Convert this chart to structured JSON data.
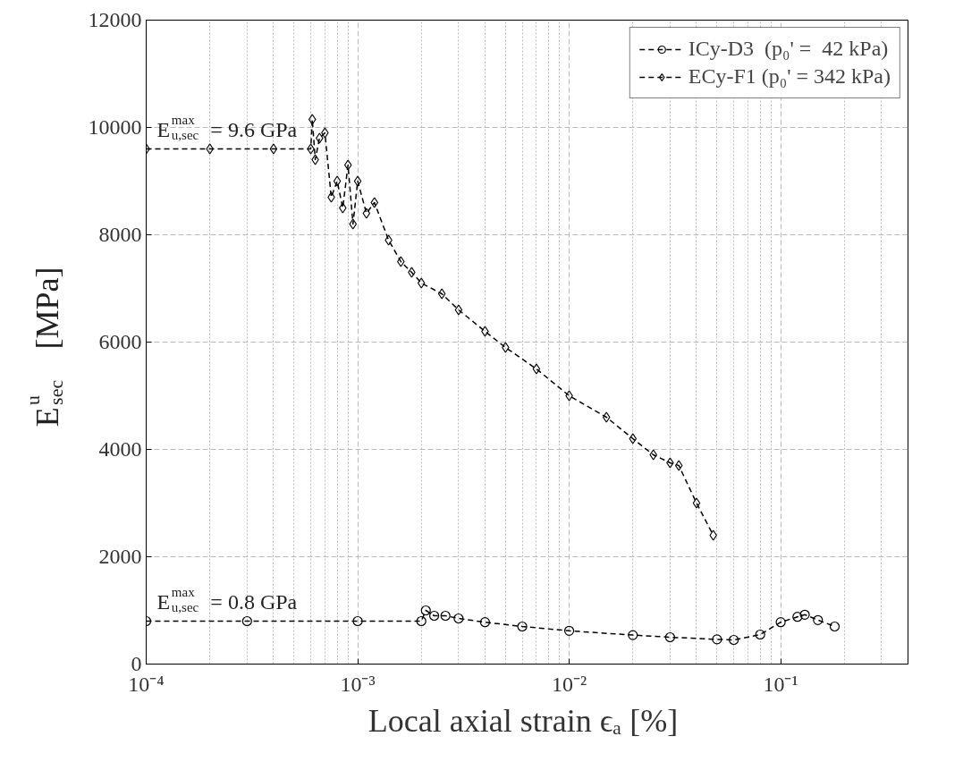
{
  "chart_data": {
    "type": "line",
    "xlabel": "Local axial strain ϵₐ  [%]",
    "ylabel": "E$^{u}$$_{sec}$  [MPa]",
    "log": "x",
    "xlim": [
      0.0001,
      0.4
    ],
    "xticks": [
      {
        "value": 0.0001,
        "label": "10⁻⁴"
      },
      {
        "value": 0.001,
        "label": "10⁻³"
      },
      {
        "value": 0.01,
        "label": "10⁻²"
      },
      {
        "value": 0.1,
        "label": "10⁻¹"
      }
    ],
    "ylim": [
      0,
      12000
    ],
    "yticks": [
      0,
      2000,
      4000,
      6000,
      8000,
      10000,
      12000
    ],
    "grid": true,
    "legend": "top right",
    "line_style": "dashed",
    "series": [
      {
        "name": "ICy-D3  (p₀' =  42 kPa)",
        "color": "#000000",
        "marker": "circle",
        "x": [
          0.0001,
          0.0003,
          0.001,
          0.002,
          0.0021,
          0.0023,
          0.0026,
          0.003,
          0.004,
          0.006,
          0.01,
          0.02,
          0.03,
          0.05,
          0.06,
          0.08,
          0.1,
          0.12,
          0.13,
          0.15,
          0.18
        ],
        "values": [
          800,
          800,
          800,
          800,
          1000,
          900,
          900,
          850,
          780,
          700,
          620,
          540,
          500,
          460,
          450,
          550,
          780,
          880,
          920,
          820,
          700
        ]
      },
      {
        "name": "ECy-F1 (p₀' = 342 kPa)",
        "color": "#000000",
        "marker": "diamond",
        "x": [
          0.0001,
          0.0002,
          0.0004,
          0.0006,
          0.00061,
          0.00063,
          0.00066,
          0.0007,
          0.00075,
          0.0008,
          0.00085,
          0.0009,
          0.00095,
          0.001,
          0.0011,
          0.0012,
          0.0014,
          0.0016,
          0.0018,
          0.002,
          0.0025,
          0.003,
          0.004,
          0.005,
          0.007,
          0.01,
          0.015,
          0.02,
          0.025,
          0.03,
          0.033,
          0.04,
          0.048
        ],
        "values": [
          9600,
          9600,
          9600,
          9600,
          10150,
          9400,
          9800,
          9900,
          8700,
          9000,
          8500,
          9300,
          8200,
          9000,
          8400,
          8600,
          7900,
          7500,
          7300,
          7100,
          6900,
          6600,
          6200,
          5900,
          5500,
          5000,
          4600,
          4200,
          3900,
          3750,
          3700,
          3000,
          2400
        ]
      }
    ],
    "annotations": [
      {
        "text": "E$^{max}$$_{u,sec}$ = 9.6 GPa",
        "x": 0.0001,
        "y": 9600
      },
      {
        "text": "E$^{max}$$_{u,sec}$ = 0.8 GPa",
        "x": 0.0001,
        "y": 800
      }
    ]
  }
}
